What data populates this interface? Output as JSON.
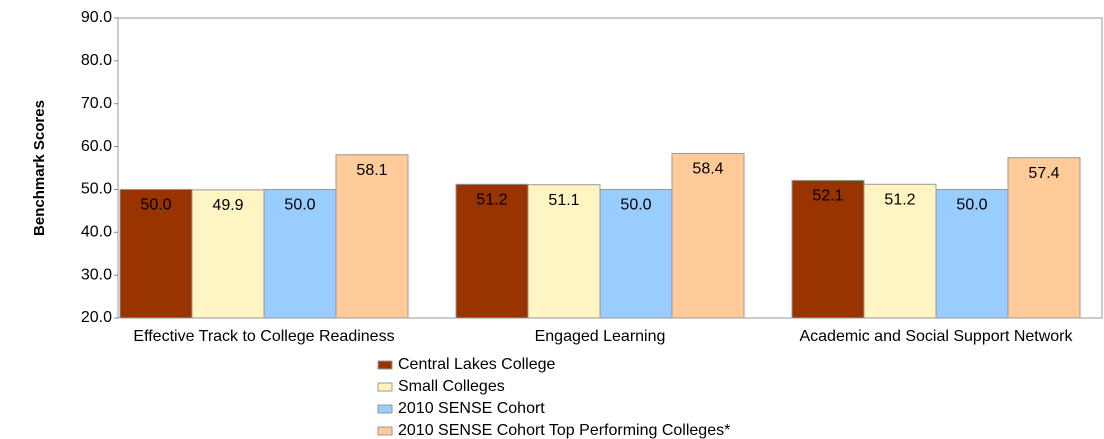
{
  "chart_data": {
    "type": "bar",
    "y_label": "Benchmark Scores",
    "categories": [
      "Effective Track to College Readiness",
      "Engaged Learning",
      "Academic and Social Support Network"
    ],
    "series": [
      {
        "name": "Central Lakes College",
        "color": "#993300",
        "values": [
          50.0,
          51.2,
          52.1
        ],
        "value_labels": [
          "50.0",
          "51.2",
          "52.1"
        ]
      },
      {
        "name": "Small Colleges",
        "color": "#fff5c2",
        "values": [
          49.9,
          51.1,
          51.2
        ],
        "value_labels": [
          "49.9",
          "51.1",
          "51.2"
        ]
      },
      {
        "name": "2010 SENSE Cohort",
        "color": "#99ccff",
        "values": [
          50.0,
          50.0,
          50.0
        ],
        "value_labels": [
          "50.0",
          "50.0",
          "50.0"
        ]
      },
      {
        "name": "2010 SENSE Cohort Top Performing Colleges*",
        "color": "#ffcc99",
        "values": [
          58.1,
          58.4,
          57.4
        ],
        "value_labels": [
          "58.1",
          "58.4",
          "57.4"
        ]
      }
    ],
    "ylim": [
      20,
      90
    ],
    "yticks": [
      {
        "value": 20,
        "label": "20.0"
      },
      {
        "value": 30,
        "label": "30.0"
      },
      {
        "value": 40,
        "label": "40.0"
      },
      {
        "value": 50,
        "label": "50.0"
      },
      {
        "value": 60,
        "label": "60.0"
      },
      {
        "value": 70,
        "label": "70.0"
      },
      {
        "value": 80,
        "label": "80.0"
      },
      {
        "value": 90,
        "label": "90.0"
      }
    ],
    "legend": "bottom"
  }
}
